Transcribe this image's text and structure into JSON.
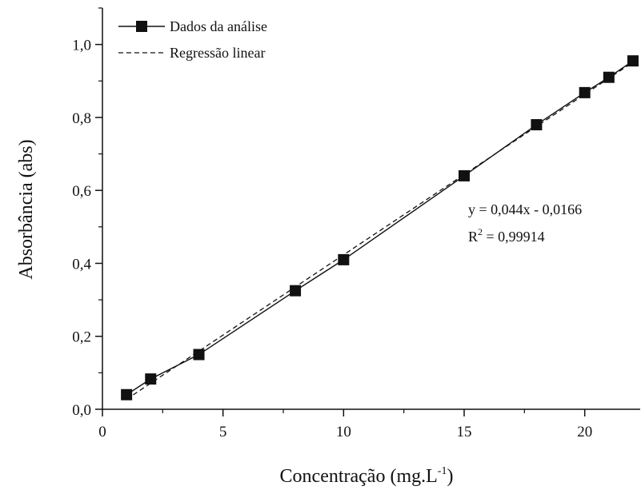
{
  "chart_data": {
    "type": "scatter",
    "xlabel": "Concentração (mg.L",
    "xlabel_sup": "-1",
    "xlabel_end": ")",
    "ylabel": "Absorbância (abs)",
    "xlim": [
      0,
      22.3
    ],
    "ylim": [
      0,
      1.1
    ],
    "x_ticks": [
      0,
      5,
      10,
      15,
      20
    ],
    "x_tick_labels": [
      "0",
      "5",
      "10",
      "15",
      "20"
    ],
    "y_ticks": [
      0,
      0.2,
      0.4,
      0.6,
      0.8,
      1.0
    ],
    "y_tick_labels": [
      "0,0",
      "0,2",
      "0,4",
      "0,6",
      "0,8",
      "1,0"
    ],
    "legend_position": "top-left",
    "series": [
      {
        "name": "Dados da análise",
        "style": "solid-line-square-markers",
        "x": [
          1,
          2,
          4,
          8,
          10,
          15,
          18,
          20,
          21,
          22
        ],
        "y": [
          0.04,
          0.083,
          0.15,
          0.325,
          0.41,
          0.64,
          0.78,
          0.868,
          0.91,
          0.955
        ]
      },
      {
        "name": "Regressão linear",
        "style": "dashed-line",
        "slope": 0.044,
        "intercept": -0.0166,
        "x_range": [
          1,
          22
        ]
      }
    ],
    "annotation": {
      "equation": "y = 0,044x - 0,0166",
      "r2_prefix": "R",
      "r2_sup": "2",
      "r2_value": " = 0,99914"
    }
  }
}
